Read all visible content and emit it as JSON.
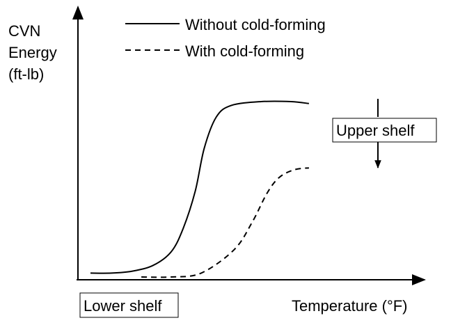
{
  "chart_data": {
    "type": "line",
    "ylabel": [
      "CVN",
      "Energy",
      "(ft-lb)"
    ],
    "xlabel": "Temperature (°F)",
    "series": [
      {
        "name": "Without cold-forming",
        "style": "solid",
        "points": [
          [
            0.0,
            0.02
          ],
          [
            0.07,
            0.02
          ],
          [
            0.14,
            0.03
          ],
          [
            0.21,
            0.06
          ],
          [
            0.27,
            0.13
          ],
          [
            0.31,
            0.25
          ],
          [
            0.35,
            0.44
          ],
          [
            0.38,
            0.66
          ],
          [
            0.42,
            0.82
          ],
          [
            0.47,
            0.88
          ],
          [
            0.57,
            0.9
          ],
          [
            0.67,
            0.9
          ],
          [
            0.73,
            0.89
          ]
        ]
      },
      {
        "name": "With cold-forming",
        "style": "dashed",
        "points": [
          [
            0.17,
            0.0
          ],
          [
            0.27,
            0.0
          ],
          [
            0.37,
            0.02
          ],
          [
            0.48,
            0.14
          ],
          [
            0.54,
            0.28
          ],
          [
            0.59,
            0.43
          ],
          [
            0.63,
            0.51
          ],
          [
            0.68,
            0.55
          ],
          [
            0.73,
            0.56
          ]
        ]
      }
    ],
    "annotations": {
      "upper_shelf": "Upper shelf",
      "lower_shelf": "Lower shelf"
    },
    "grid": false,
    "legend_position": "top"
  }
}
